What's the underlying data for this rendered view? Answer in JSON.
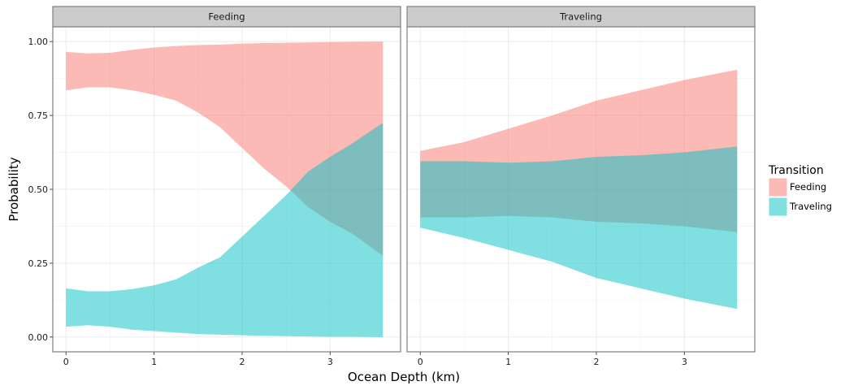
{
  "chart_data": {
    "type": "area",
    "xlabel": "Ocean Depth (km)",
    "ylabel": "Probability",
    "xlim": [
      -0.15,
      3.8
    ],
    "ylim": [
      -0.05,
      1.05
    ],
    "x_ticks": [
      0,
      1,
      2,
      3
    ],
    "x_tick_labels": [
      "0",
      "1",
      "2",
      "3"
    ],
    "y_ticks": [
      0,
      0.25,
      0.5,
      0.75,
      1.0
    ],
    "y_tick_labels": [
      "0.00",
      "0.25",
      "0.50",
      "0.75",
      "1.00"
    ],
    "grid": true,
    "legend": {
      "title": "Transition",
      "position": "right",
      "entries": [
        {
          "label": "Feeding",
          "color": "#F8766D"
        },
        {
          "label": "Traveling",
          "color": "#00BFC4"
        }
      ]
    },
    "band_opacity": 0.5,
    "panels": [
      {
        "strip": "Feeding",
        "series": [
          {
            "name": "Feeding",
            "x": [
              0,
              0.25,
              0.5,
              0.75,
              1.0,
              1.25,
              1.5,
              1.75,
              2.0,
              2.25,
              2.5,
              2.75,
              3.0,
              3.25,
              3.6
            ],
            "upper": [
              0.965,
              0.96,
              0.962,
              0.972,
              0.98,
              0.985,
              0.988,
              0.99,
              0.993,
              0.995,
              0.996,
              0.997,
              0.998,
              0.999,
              1.0
            ],
            "lower": [
              0.835,
              0.845,
              0.845,
              0.835,
              0.82,
              0.8,
              0.76,
              0.71,
              0.64,
              0.57,
              0.51,
              0.44,
              0.39,
              0.35,
              0.275
            ]
          },
          {
            "name": "Traveling",
            "x": [
              0,
              0.25,
              0.5,
              0.75,
              1.0,
              1.25,
              1.5,
              1.75,
              2.0,
              2.25,
              2.5,
              2.75,
              3.0,
              3.25,
              3.6
            ],
            "upper": [
              0.165,
              0.155,
              0.155,
              0.162,
              0.175,
              0.195,
              0.235,
              0.27,
              0.34,
              0.41,
              0.48,
              0.56,
              0.61,
              0.655,
              0.725
            ],
            "lower": [
              0.035,
              0.04,
              0.035,
              0.025,
              0.02,
              0.015,
              0.01,
              0.008,
              0.006,
              0.004,
              0.003,
              0.002,
              0.001,
              0.001,
              0.0
            ]
          }
        ]
      },
      {
        "strip": "Traveling",
        "series": [
          {
            "name": "Feeding",
            "x": [
              0,
              0.5,
              1.0,
              1.5,
              2.0,
              2.5,
              3.0,
              3.6
            ],
            "upper": [
              0.63,
              0.66,
              0.705,
              0.75,
              0.8,
              0.835,
              0.87,
              0.905
            ],
            "lower": [
              0.405,
              0.405,
              0.41,
              0.405,
              0.39,
              0.385,
              0.375,
              0.355
            ]
          },
          {
            "name": "Traveling",
            "x": [
              0,
              0.5,
              1.0,
              1.5,
              2.0,
              2.5,
              3.0,
              3.6
            ],
            "upper": [
              0.595,
              0.595,
              0.59,
              0.595,
              0.61,
              0.615,
              0.625,
              0.645
            ],
            "lower": [
              0.37,
              0.335,
              0.295,
              0.255,
              0.2,
              0.165,
              0.13,
              0.095
            ]
          }
        ]
      }
    ]
  }
}
